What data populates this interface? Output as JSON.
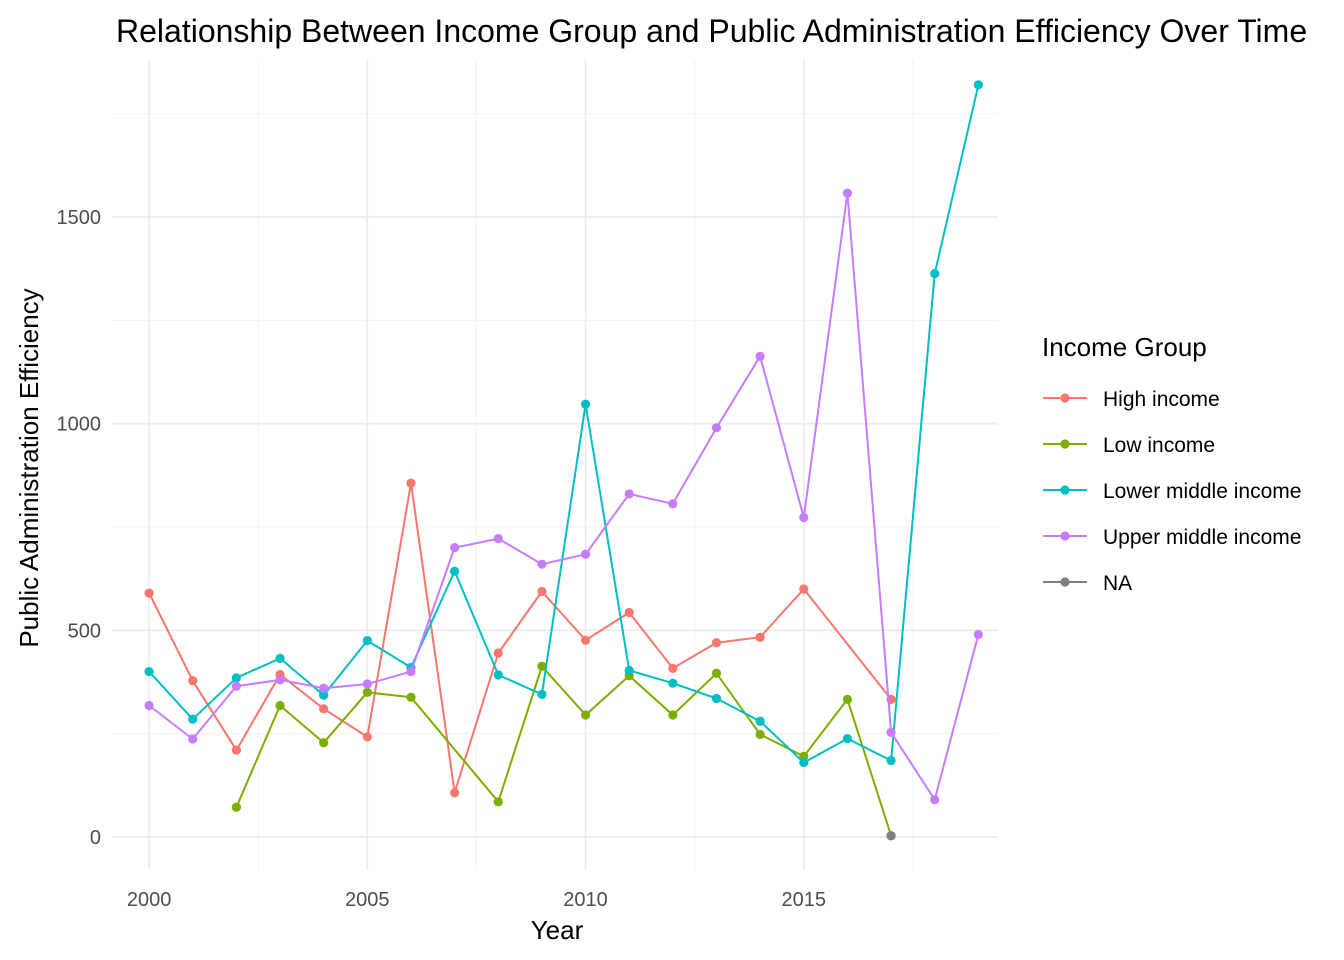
{
  "chart_data": {
    "type": "line",
    "title": "Relationship Between Income Group and Public Administration Efficiency Over Time",
    "xlabel": "Year",
    "ylabel": "Public Administration Efficiency",
    "xlim": [
      1999.15,
      2019.45
    ],
    "ylim": [
      -80,
      1880
    ],
    "x_ticks": [
      2000,
      2005,
      2010,
      2015
    ],
    "y_ticks": [
      0,
      500,
      1000,
      1500
    ],
    "grid": true,
    "legend_title": "Income Group",
    "legend_position": "right",
    "series": [
      {
        "name": "High income",
        "color": "#F8766D",
        "points": [
          [
            2000,
            590
          ],
          [
            2001,
            378
          ],
          [
            2002,
            210
          ],
          [
            2003,
            393
          ],
          [
            2004,
            310
          ],
          [
            2005,
            242
          ],
          [
            2006,
            856
          ],
          [
            2007,
            107
          ],
          [
            2008,
            445
          ],
          [
            2009,
            594
          ],
          [
            2010,
            476
          ],
          [
            2011,
            543
          ],
          [
            2012,
            408
          ],
          [
            2013,
            470
          ],
          [
            2014,
            483
          ],
          [
            2015,
            600
          ],
          [
            2017,
            333
          ]
        ]
      },
      {
        "name": "Low income",
        "color": "#7CAE00",
        "points": [
          [
            2002,
            72
          ],
          [
            2003,
            318
          ],
          [
            2004,
            228
          ],
          [
            2005,
            350
          ],
          [
            2006,
            338
          ],
          [
            2008,
            85
          ],
          [
            2009,
            413
          ],
          [
            2010,
            295
          ],
          [
            2011,
            390
          ],
          [
            2012,
            295
          ],
          [
            2013,
            396
          ],
          [
            2014,
            248
          ],
          [
            2015,
            195
          ],
          [
            2016,
            333
          ],
          [
            2017,
            3
          ]
        ]
      },
      {
        "name": "Lower middle income",
        "color": "#00BFC4",
        "points": [
          [
            2000,
            400
          ],
          [
            2001,
            285
          ],
          [
            2002,
            385
          ],
          [
            2003,
            432
          ],
          [
            2004,
            343
          ],
          [
            2005,
            475
          ],
          [
            2006,
            410
          ],
          [
            2007,
            643
          ],
          [
            2008,
            392
          ],
          [
            2009,
            345
          ],
          [
            2010,
            1047
          ],
          [
            2011,
            403
          ],
          [
            2012,
            372
          ],
          [
            2013,
            335
          ],
          [
            2014,
            280
          ],
          [
            2015,
            180
          ],
          [
            2016,
            238
          ],
          [
            2017,
            185
          ],
          [
            2018,
            1363
          ],
          [
            2019,
            1820
          ]
        ]
      },
      {
        "name": "Upper middle income",
        "color": "#C77CFF",
        "points": [
          [
            2000,
            318
          ],
          [
            2001,
            237
          ],
          [
            2002,
            365
          ],
          [
            2003,
            380
          ],
          [
            2004,
            360
          ],
          [
            2005,
            370
          ],
          [
            2006,
            400
          ],
          [
            2007,
            700
          ],
          [
            2008,
            722
          ],
          [
            2009,
            660
          ],
          [
            2010,
            684
          ],
          [
            2011,
            830
          ],
          [
            2012,
            806
          ],
          [
            2013,
            990
          ],
          [
            2014,
            1163
          ],
          [
            2015,
            773
          ],
          [
            2016,
            1558
          ],
          [
            2017,
            253
          ],
          [
            2018,
            90
          ],
          [
            2019,
            490
          ]
        ]
      },
      {
        "name": "NA",
        "color": "#7F7F7F",
        "points": [
          [
            2017,
            3
          ]
        ]
      }
    ]
  }
}
